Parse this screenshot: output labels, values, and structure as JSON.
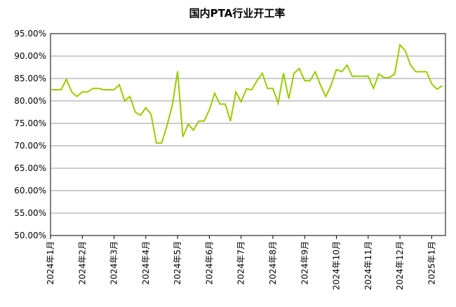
{
  "chart_data": {
    "type": "line",
    "title": "国内PTA行业开工率",
    "categories": [
      "2024年1月",
      null,
      null,
      null,
      null,
      null,
      "2024年2月",
      null,
      null,
      null,
      null,
      null,
      "2024年3月",
      null,
      null,
      null,
      null,
      null,
      "2024年4月",
      null,
      null,
      null,
      null,
      null,
      "2024年5月",
      null,
      null,
      null,
      null,
      null,
      "2024年6月",
      null,
      null,
      null,
      null,
      null,
      "2024年7月",
      null,
      null,
      null,
      null,
      null,
      "2024年8月",
      null,
      null,
      null,
      null,
      null,
      "2024年9月",
      null,
      null,
      null,
      null,
      null,
      "2024年10月",
      null,
      null,
      null,
      null,
      null,
      "2024年11月",
      null,
      null,
      null,
      null,
      null,
      "2024年12月",
      null,
      null,
      null,
      null,
      null,
      "2025年1月",
      null,
      null
    ],
    "series": [
      {
        "color": "#99cc00",
        "values": [
          82.5,
          82.5,
          82.5,
          84.8,
          82,
          81,
          82,
          82,
          82.8,
          82.8,
          82.5,
          82.5,
          82.5,
          83.6,
          80,
          81,
          77.5,
          76.8,
          78.5,
          77,
          70.6,
          70.6,
          74.5,
          79,
          86.6,
          72,
          74.8,
          73.5,
          75.5,
          75.5,
          78,
          81.7,
          79.3,
          79.3,
          75.5,
          82,
          79.8,
          82.7,
          82.5,
          84.5,
          86.2,
          82.8,
          82.8,
          79.5,
          86.2,
          80.5,
          86.2,
          87.2,
          84.5,
          84.5,
          86.5,
          83.5,
          81,
          83.5,
          87,
          86.5,
          88,
          85.5,
          85.5,
          85.5,
          85.5,
          82.8,
          86,
          85.2,
          85.2,
          86,
          92.5,
          91.2,
          88,
          86.5,
          86.5,
          86.5,
          83.8,
          82.6,
          83.4
        ]
      }
    ],
    "ylim": [
      50,
      95
    ],
    "yticks": [
      {
        "value": 50,
        "label": "50.00%"
      },
      {
        "value": 55,
        "label": "55.00%"
      },
      {
        "value": 60,
        "label": "60.00%"
      },
      {
        "value": 65,
        "label": "65.00%"
      },
      {
        "value": 70,
        "label": "70.00%"
      },
      {
        "value": 75,
        "label": "75.00%"
      },
      {
        "value": 80,
        "label": "80.00%"
      },
      {
        "value": 85,
        "label": "85.00%"
      },
      {
        "value": 90,
        "label": "90.00%"
      },
      {
        "value": 95,
        "label": "95.00%"
      }
    ],
    "grid": true
  }
}
